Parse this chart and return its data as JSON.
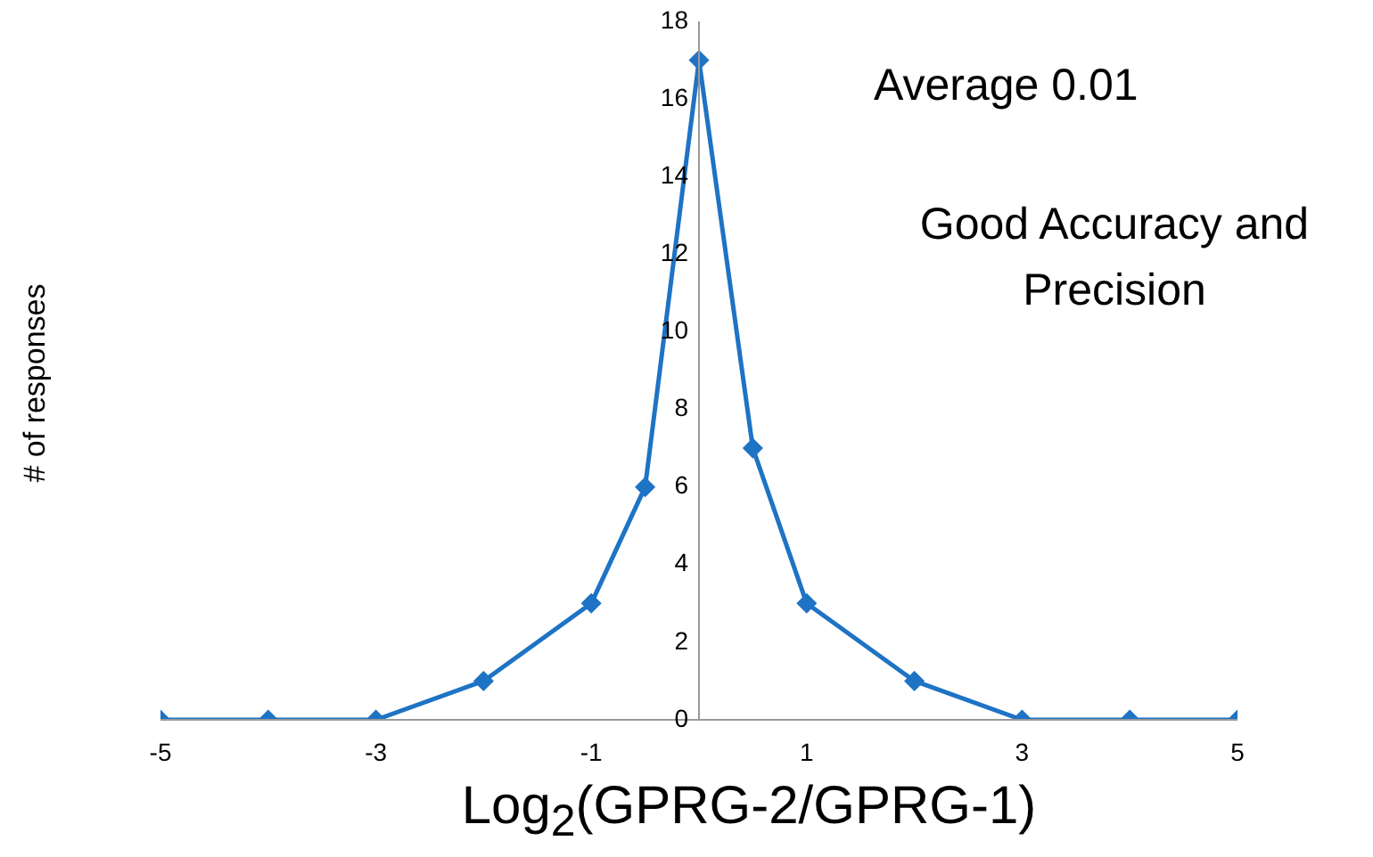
{
  "chart_data": {
    "type": "line",
    "xlabel": "Log$_{2}$(GPRG-2/GPRG-1)",
    "ylabel": "# of responses",
    "annotations": [
      "Average 0.01",
      "Good Accuracy and Precision"
    ],
    "x": [
      -5,
      -4,
      -3,
      -2,
      -1,
      -0.5,
      0,
      0.5,
      1,
      2,
      3,
      4,
      5
    ],
    "series": [
      {
        "color": "#1e73c4",
        "values": [
          0,
          0,
          0,
          1,
          3,
          6,
          17,
          7,
          3,
          1,
          0,
          0,
          0
        ]
      }
    ],
    "xlim": [
      -5,
      5
    ],
    "xticks": [
      -5,
      -3,
      -1,
      1,
      3,
      5
    ],
    "ylim": [
      0,
      18
    ],
    "yticks": [
      0,
      2,
      4,
      6,
      8,
      10,
      12,
      14,
      16,
      18
    ],
    "grid": false,
    "legend": false,
    "marker": "diamond",
    "line_style": "solid"
  }
}
